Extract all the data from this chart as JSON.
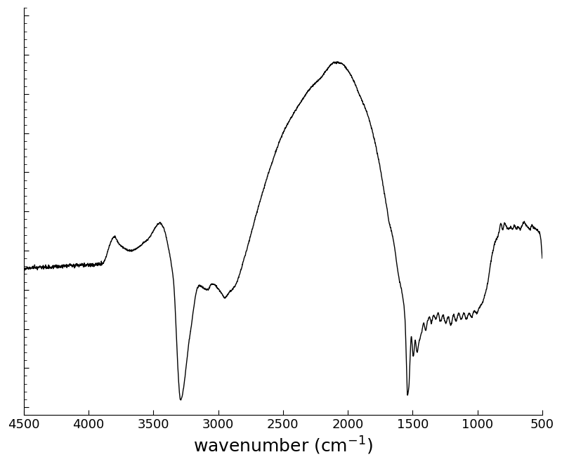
{
  "xlabel_plain": "wavenumber (cm$^{-1}$)",
  "xlim": [
    4500,
    500
  ],
  "xticks": [
    4500,
    4000,
    3500,
    3000,
    2500,
    2000,
    1500,
    1000,
    500
  ],
  "line_color": "#000000",
  "line_width": 1.0,
  "bg_color": "#ffffff",
  "xlabel_fontsize": 18,
  "xtick_fontsize": 13
}
